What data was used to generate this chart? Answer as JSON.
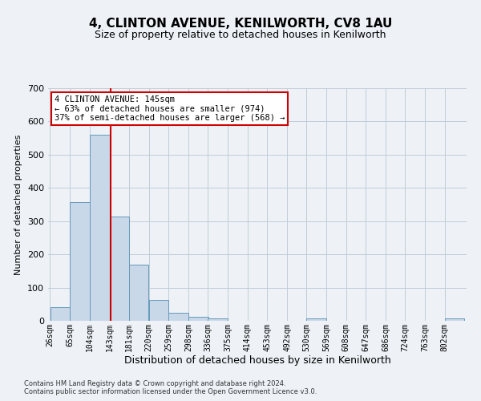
{
  "title": "4, CLINTON AVENUE, KENILWORTH, CV8 1AU",
  "subtitle": "Size of property relative to detached houses in Kenilworth",
  "xlabel": "Distribution of detached houses by size in Kenilworth",
  "ylabel": "Number of detached properties",
  "bin_labels": [
    "26sqm",
    "65sqm",
    "104sqm",
    "143sqm",
    "181sqm",
    "220sqm",
    "259sqm",
    "298sqm",
    "336sqm",
    "375sqm",
    "414sqm",
    "453sqm",
    "492sqm",
    "530sqm",
    "569sqm",
    "608sqm",
    "647sqm",
    "686sqm",
    "724sqm",
    "763sqm",
    "802sqm"
  ],
  "bar_heights": [
    40,
    357,
    560,
    315,
    168,
    62,
    23,
    12,
    8,
    0,
    0,
    0,
    0,
    7,
    0,
    0,
    0,
    0,
    0,
    0,
    7
  ],
  "bin_edges": [
    26,
    65,
    104,
    143,
    181,
    220,
    259,
    298,
    336,
    375,
    414,
    453,
    492,
    530,
    569,
    608,
    647,
    686,
    724,
    763,
    802
  ],
  "property_size": 145,
  "bar_color": "#c8d8e8",
  "bar_edge_color": "#6699bb",
  "line_color": "#cc0000",
  "annotation_text": "4 CLINTON AVENUE: 145sqm\n← 63% of detached houses are smaller (974)\n37% of semi-detached houses are larger (568) →",
  "annotation_box_color": "#ffffff",
  "annotation_box_edge": "#cc0000",
  "ylim": [
    0,
    700
  ],
  "yticks": [
    0,
    100,
    200,
    300,
    400,
    500,
    600,
    700
  ],
  "footer1": "Contains HM Land Registry data © Crown copyright and database right 2024.",
  "footer2": "Contains public sector information licensed under the Open Government Licence v3.0.",
  "bg_color": "#eef2f7",
  "grid_color": "#c0ccd8",
  "title_fontsize": 11,
  "subtitle_fontsize": 9,
  "ylabel_fontsize": 8,
  "xlabel_fontsize": 9,
  "tick_fontsize": 7,
  "footer_fontsize": 6
}
